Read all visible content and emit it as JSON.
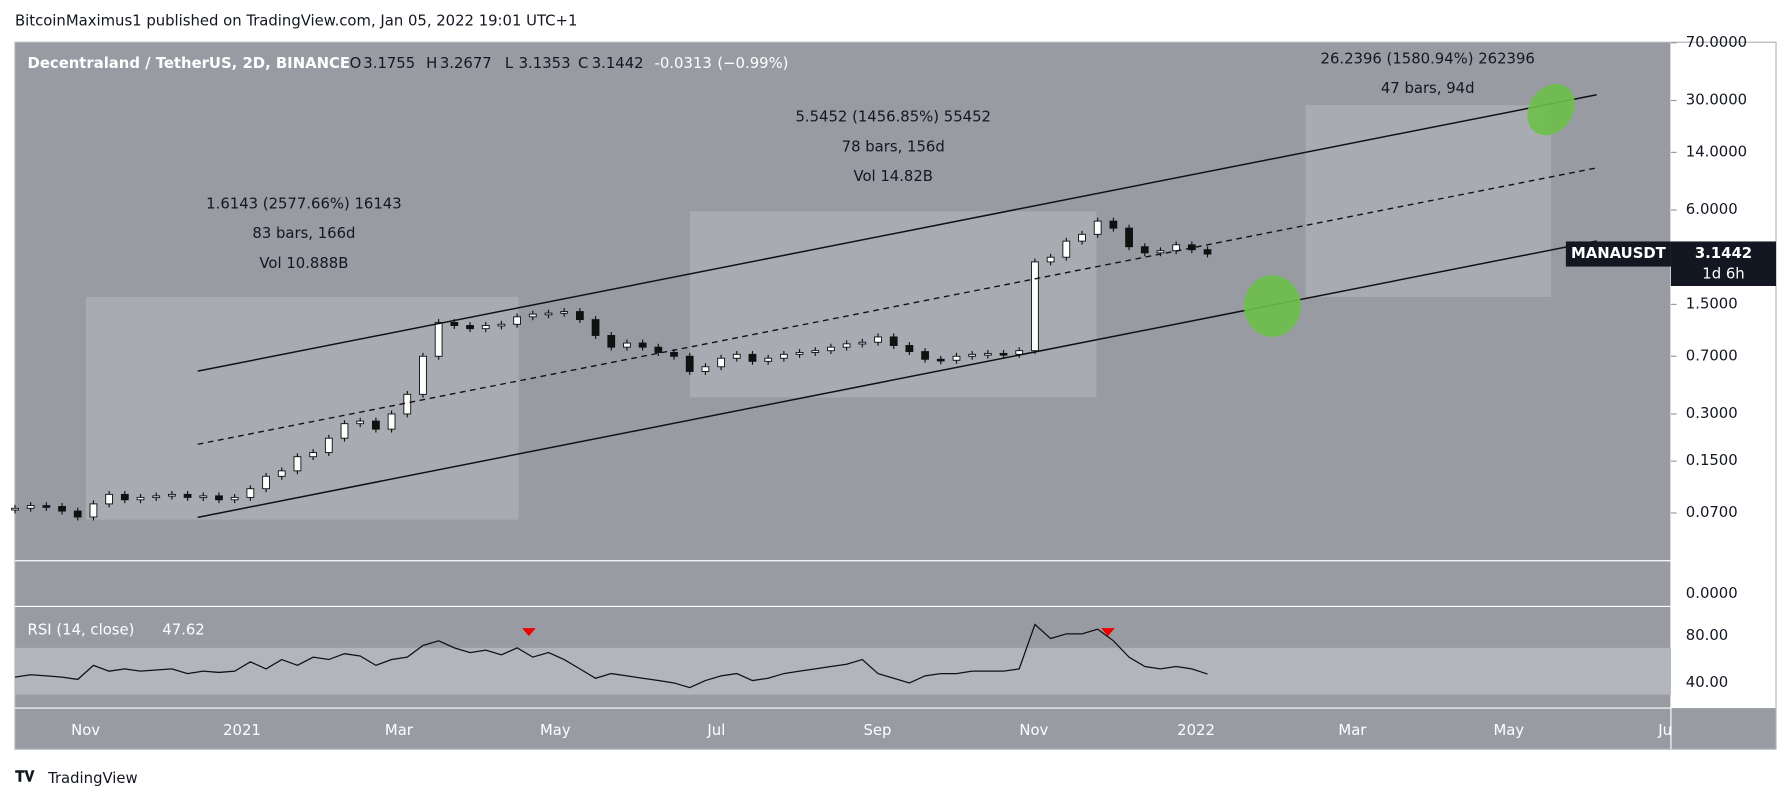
{
  "header": {
    "publisher": "BitcoinMaximus1 published on TradingView.com, Jan 05, 2022 19:01 UTC+1"
  },
  "footer": {
    "brand": "TradingView"
  },
  "chart_data": {
    "type": "candlestick",
    "symbol": "Decentraland / TetherUS, 2D, BINANCE",
    "ohlc": [
      {
        "key": "O",
        "value": 3.1755
      },
      {
        "key": "H",
        "value": 3.2677
      },
      {
        "key": "L",
        "value": 3.1353
      },
      {
        "key": "C"
      }
    ],
    "change": -0.0313,
    "change_pct": {
      "value": -0.99,
      "label": "(−0.99%)"
    },
    "currency": "USDT",
    "log_scale": true,
    "x": [
      0,
      3,
      6,
      9,
      12,
      15,
      18,
      21,
      24,
      27,
      30,
      33,
      36,
      39,
      42,
      45,
      48,
      51,
      54,
      57,
      60,
      63,
      66,
      69,
      72,
      75,
      78,
      81,
      84,
      87,
      90,
      93,
      96,
      99,
      102,
      105,
      108,
      111,
      114,
      117,
      120,
      123,
      126,
      129,
      132,
      135,
      138,
      141,
      144,
      147,
      150,
      153,
      156,
      159,
      162,
      165,
      168,
      171,
      174,
      177,
      180,
      183,
      186,
      189,
      192,
      195,
      198,
      201,
      204,
      207,
      210,
      213,
      216,
      219,
      222,
      225,
      228
    ],
    "closes": [
      0.075,
      0.078,
      0.077,
      0.072,
      0.066,
      0.08,
      0.092,
      0.085,
      0.088,
      0.09,
      0.092,
      0.088,
      0.09,
      0.085,
      0.088,
      0.1,
      0.12,
      0.13,
      0.16,
      0.17,
      0.21,
      0.26,
      0.27,
      0.24,
      0.3,
      0.4,
      0.7,
      1.15,
      1.1,
      1.05,
      1.1,
      1.12,
      1.25,
      1.3,
      1.32,
      1.35,
      1.2,
      0.95,
      0.8,
      0.85,
      0.8,
      0.74,
      0.7,
      0.56,
      0.6,
      0.68,
      0.72,
      0.65,
      0.68,
      0.72,
      0.74,
      0.76,
      0.8,
      0.84,
      0.86,
      0.93,
      0.82,
      0.75,
      0.67,
      0.66,
      0.7,
      0.72,
      0.73,
      0.72,
      0.76,
      2.8,
      3.0,
      3.8,
      4.2,
      5.1,
      4.6,
      3.5,
      3.2,
      3.3,
      3.6,
      3.35,
      3.1442
    ],
    "xlim": [
      0,
      316.6
    ],
    "xticks": [
      {
        "value": 13.5,
        "label": "Nov"
      },
      {
        "value": 43.4,
        "label": "2021"
      },
      {
        "value": 73.4,
        "label": "Mar"
      },
      {
        "value": 103.3,
        "label": "May"
      },
      {
        "value": 134.1,
        "label": "Jul"
      },
      {
        "value": 164.9,
        "label": "Sep"
      },
      {
        "value": 194.8,
        "label": "Nov"
      },
      {
        "value": 225.8,
        "label": "2022"
      },
      {
        "value": 255.7,
        "label": "Mar"
      },
      {
        "value": 285.6,
        "label": "May"
      },
      {
        "value": 315.5,
        "label": "Ju"
      }
    ],
    "ylim": [
      0.0347,
      70.6
    ],
    "yticks": [
      {
        "value": 70,
        "label": "70.0000"
      },
      {
        "value": 30,
        "label": "30.0000"
      },
      {
        "value": 14,
        "label": "14.0000"
      },
      {
        "value": 6,
        "label": "6.0000"
      },
      {
        "value": 1.5,
        "label": "1.5000"
      },
      {
        "value": 0.7,
        "label": "0.7000"
      },
      {
        "value": 0.3,
        "label": "0.3000"
      },
      {
        "value": 0.15,
        "label": "0.1500"
      },
      {
        "value": 0.07,
        "label": "0.0700"
      }
    ],
    "scale_floor_label": "0.0000",
    "last_price": {
      "symbol": "MANAUSDT",
      "countdown": "1d 6h"
    },
    "annotations": [
      [
        "1.6143 (2577.66%) 16143",
        "83 bars, 166d",
        "Vol 10.888B"
      ],
      [
        "5.5452 (1456.85%) 55452",
        "78 bars, 156d",
        "Vol 14.82B"
      ],
      [
        "26.2396 (1580.94%) 262396",
        "47 bars, 94d"
      ]
    ],
    "rsi": {
      "name": "RSI (14, close)",
      "band": [
        30,
        70
      ],
      "ylim": [
        18.5,
        105.4
      ],
      "yticks": [
        {
          "value": 80,
          "label": "80.00"
        },
        {
          "value": 40,
          "label": "40.00"
        }
      ],
      "values": [
        45,
        47,
        46,
        45,
        43,
        55,
        50,
        52,
        50,
        51,
        52,
        48,
        50,
        49,
        50,
        58,
        52,
        60,
        55,
        62,
        60,
        65,
        63,
        55,
        60,
        62,
        72,
        76,
        70,
        66,
        68,
        64,
        70,
        62,
        66,
        60,
        52,
        44,
        48,
        46,
        44,
        42,
        40,
        36,
        42,
        46,
        48,
        42,
        44,
        48,
        50,
        52,
        54,
        56,
        60,
        48,
        44,
        40,
        46,
        48,
        48,
        50,
        50,
        50,
        52,
        90,
        78,
        82,
        82,
        86,
        76,
        62,
        54,
        52,
        54,
        52,
        47.62
      ]
    }
  }
}
